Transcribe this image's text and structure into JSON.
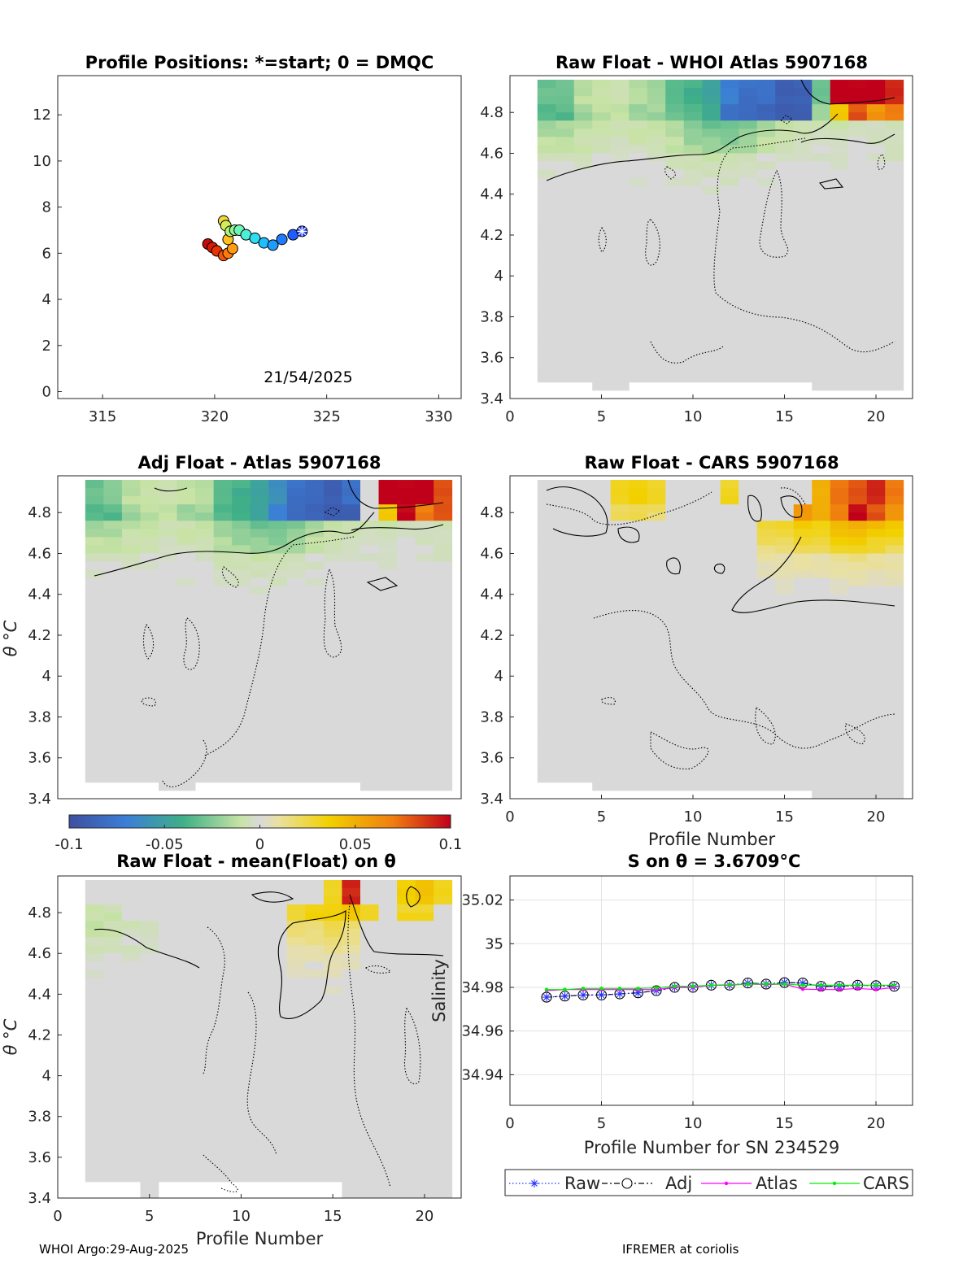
{
  "footer": {
    "left": "WHOI Argo:29-Aug-2025",
    "right": "IFREMER at coriolis"
  },
  "colorbar": {
    "ticks": [
      "-0.1",
      "-0.05",
      "0",
      "0.05",
      "0.1"
    ],
    "range": [
      -0.1,
      0.1
    ]
  },
  "chart_data": [
    {
      "id": "positions",
      "type": "scatter",
      "title": "Profile Positions: *=start; 0 = DMQC",
      "annotation": "21/54/2025",
      "xlim": [
        313,
        331
      ],
      "ylim": [
        -0.3,
        13.7
      ],
      "xticks": [
        "315",
        "320",
        "325",
        "330"
      ],
      "yticks": [
        "0",
        "2",
        "4",
        "6",
        "8",
        "10",
        "12"
      ],
      "lon": [
        323.9,
        323.5,
        323.0,
        322.6,
        322.2,
        321.8,
        321.4,
        321.1,
        320.9,
        320.7,
        320.5,
        320.4,
        320.6,
        320.8,
        320.6,
        320.4,
        320.1,
        319.9,
        319.7
      ],
      "lat": [
        6.95,
        6.8,
        6.6,
        6.35,
        6.45,
        6.65,
        6.8,
        7.0,
        7.0,
        6.95,
        7.2,
        7.4,
        6.6,
        6.2,
        6.0,
        5.9,
        6.1,
        6.25,
        6.4
      ]
    },
    {
      "id": "raw-whoi",
      "type": "heatmap",
      "title": "Raw Float - WHOI Atlas  5907168",
      "xlim": [
        0,
        22
      ],
      "ylim": [
        3.4,
        4.98
      ],
      "xticks": [
        "0",
        "5",
        "10",
        "15",
        "20"
      ],
      "yticks": [
        "3.4",
        "3.6",
        "3.8",
        "4",
        "4.2",
        "4.4",
        "4.6",
        "4.8"
      ],
      "ylabel": "",
      "profiles": [
        2,
        21
      ],
      "band_hi": [
        [
          -0.03,
          -0.03,
          -0.015,
          -0.012,
          -0.01,
          -0.015,
          -0.02,
          -0.035,
          -0.04,
          -0.05,
          -0.07,
          -0.08,
          -0.08,
          -0.09,
          -0.09,
          -0.03,
          0.1,
          0.1,
          0.1,
          0.09
        ],
        [
          -0.035,
          -0.035,
          -0.02,
          -0.015,
          -0.015,
          -0.02,
          -0.02,
          -0.03,
          -0.035,
          -0.045,
          -0.08,
          -0.08,
          -0.085,
          -0.09,
          -0.09,
          -0.02,
          0.04,
          0.08,
          0.06,
          0.07
        ]
      ],
      "band_mid": [
        -0.02,
        -0.02,
        -0.015,
        -0.01,
        -0.01,
        -0.012,
        -0.015,
        -0.02,
        -0.03,
        -0.035,
        -0.035,
        -0.03,
        -0.02,
        -0.015,
        -0.01,
        -0.01,
        -0.01,
        -0.01,
        -0.008,
        -0.01
      ]
    },
    {
      "id": "adj-atlas",
      "type": "heatmap",
      "title": "Adj Float - Atlas  5907168",
      "xlim": [
        0,
        22
      ],
      "ylim": [
        3.4,
        4.98
      ],
      "xticks": [],
      "yticks": [
        "3.4",
        "3.6",
        "3.8",
        "4",
        "4.2",
        "4.4",
        "4.6",
        "4.8"
      ],
      "ylabel": "θ °C",
      "profiles": [
        2,
        21
      ],
      "band_hi": [
        [
          -0.03,
          -0.025,
          -0.015,
          -0.012,
          -0.01,
          -0.012,
          -0.015,
          -0.035,
          -0.04,
          -0.05,
          -0.06,
          -0.08,
          -0.085,
          -0.09,
          -0.08,
          0.0,
          0.1,
          0.1,
          0.1,
          0.08
        ],
        [
          -0.035,
          -0.035,
          -0.02,
          -0.015,
          -0.015,
          -0.02,
          -0.02,
          -0.035,
          -0.04,
          -0.05,
          -0.07,
          -0.08,
          -0.085,
          -0.09,
          -0.09,
          0.0,
          0.04,
          0.1,
          0.07,
          0.08
        ]
      ],
      "band_mid": [
        -0.02,
        -0.02,
        -0.015,
        -0.012,
        -0.01,
        -0.012,
        -0.015,
        -0.025,
        -0.03,
        -0.035,
        -0.035,
        -0.03,
        -0.02,
        -0.015,
        -0.01,
        -0.01,
        -0.01,
        -0.01,
        -0.008,
        -0.01
      ]
    },
    {
      "id": "raw-cars",
      "type": "heatmap",
      "title": "Raw Float - CARS  5907168",
      "xlim": [
        0,
        22
      ],
      "ylim": [
        3.4,
        4.98
      ],
      "xticks": [
        "0",
        "5",
        "10",
        "15",
        "20"
      ],
      "yticks": [
        "3.4",
        "3.6",
        "3.8",
        "4",
        "4.2",
        "4.4",
        "4.6",
        "4.8"
      ],
      "xlabel": "Profile Number",
      "profiles": [
        2,
        21
      ],
      "band_hi": [
        [
          0.0,
          0.0,
          0.0,
          0.0,
          0.03,
          0.035,
          0.03,
          0.0,
          0.0,
          0.0,
          0.03,
          0.0,
          0.0,
          0.0,
          0.0,
          0.05,
          0.07,
          0.08,
          0.09,
          0.07
        ],
        [
          0.0,
          0.0,
          0.0,
          0.0,
          0.02,
          0.025,
          0.02,
          0.0,
          0.0,
          0.0,
          0.0,
          0.0,
          0.0,
          0.0,
          0.06,
          0.05,
          0.07,
          0.1,
          0.08,
          0.06
        ]
      ],
      "band_mid": [
        0.0,
        0.0,
        0.0,
        0.0,
        0.0,
        0.0,
        0.0,
        0.0,
        0.0,
        0.0,
        0.0,
        0.0,
        0.03,
        0.03,
        0.04,
        0.035,
        0.05,
        0.05,
        0.045,
        0.04
      ]
    },
    {
      "id": "raw-mean",
      "type": "heatmap",
      "title": "Raw Float - mean(Float) on θ",
      "xlim": [
        0,
        22
      ],
      "ylim": [
        3.4,
        4.98
      ],
      "xticks": [
        "0",
        "5",
        "10",
        "15",
        "20"
      ],
      "yticks": [
        "3.4",
        "3.6",
        "3.8",
        "4",
        "4.2",
        "4.4",
        "4.6",
        "4.8"
      ],
      "ylabel": "θ °C",
      "xlabel": "Profile Number",
      "profiles": [
        2,
        21
      ],
      "band_hi": [
        [
          0.0,
          0.0,
          0.0,
          0.0,
          0.0,
          0.0,
          0.0,
          0.0,
          0.0,
          0.0,
          0.0,
          0.0,
          0.0,
          0.03,
          0.09,
          0.0,
          0.0,
          0.035,
          0.04,
          0.03
        ],
        [
          -0.01,
          -0.01,
          0.0,
          0.0,
          0.0,
          0.0,
          0.0,
          0.0,
          0.0,
          0.0,
          0.0,
          0.03,
          0.035,
          0.035,
          0.04,
          0.03,
          0.0,
          0.03,
          0.03,
          0.0
        ]
      ],
      "band_mid": [
        -0.012,
        -0.01,
        -0.008,
        -0.005,
        0.0,
        0.0,
        0.0,
        0.0,
        0.0,
        0.0,
        0.0,
        0.02,
        0.02,
        0.025,
        0.02,
        0.0,
        0.0,
        0.0,
        0.0,
        0.0
      ]
    },
    {
      "id": "salinity",
      "type": "line",
      "title": "S on θ = 3.6709°C",
      "xlabel": "Profile Number for SN 234529",
      "ylabel": "Salinity",
      "xlim": [
        0,
        22
      ],
      "ylim": [
        34.926,
        35.031
      ],
      "xticks": [
        "0",
        "5",
        "10",
        "15",
        "20"
      ],
      "yticks": [
        "34.94",
        "34.96",
        "34.98",
        "35",
        "35.02"
      ],
      "x": [
        2,
        3,
        4,
        5,
        6,
        7,
        8,
        9,
        10,
        11,
        12,
        13,
        14,
        15,
        16,
        17,
        18,
        19,
        20,
        21
      ],
      "series": [
        {
          "name": "Raw",
          "values": [
            34.9755,
            34.976,
            34.9765,
            34.9765,
            34.977,
            34.9775,
            34.9785,
            34.98,
            34.98,
            34.981,
            34.981,
            34.982,
            34.9815,
            34.9822,
            34.982,
            34.9805,
            34.9805,
            34.981,
            34.9808,
            34.9805
          ]
        },
        {
          "name": "Adj",
          "values": [
            34.9755,
            34.976,
            34.9765,
            34.9765,
            34.977,
            34.9775,
            34.9785,
            34.98,
            34.98,
            34.981,
            34.981,
            34.982,
            34.9815,
            34.9822,
            34.982,
            34.9805,
            34.9805,
            34.981,
            34.9808,
            34.9805
          ]
        },
        {
          "name": "Atlas",
          "values": [
            34.9785,
            34.979,
            34.979,
            34.979,
            34.979,
            34.979,
            34.979,
            34.98,
            34.98,
            34.981,
            34.981,
            34.9815,
            34.9812,
            34.9815,
            34.9792,
            34.979,
            34.979,
            34.9795,
            34.979,
            34.98
          ]
        },
        {
          "name": "CARS",
          "values": [
            34.979,
            34.979,
            34.9795,
            34.9795,
            34.9795,
            34.9795,
            34.9798,
            34.9805,
            34.9805,
            34.981,
            34.9812,
            34.9815,
            34.9815,
            34.9815,
            34.981,
            34.981,
            34.981,
            34.981,
            34.981,
            34.981
          ]
        }
      ]
    }
  ]
}
